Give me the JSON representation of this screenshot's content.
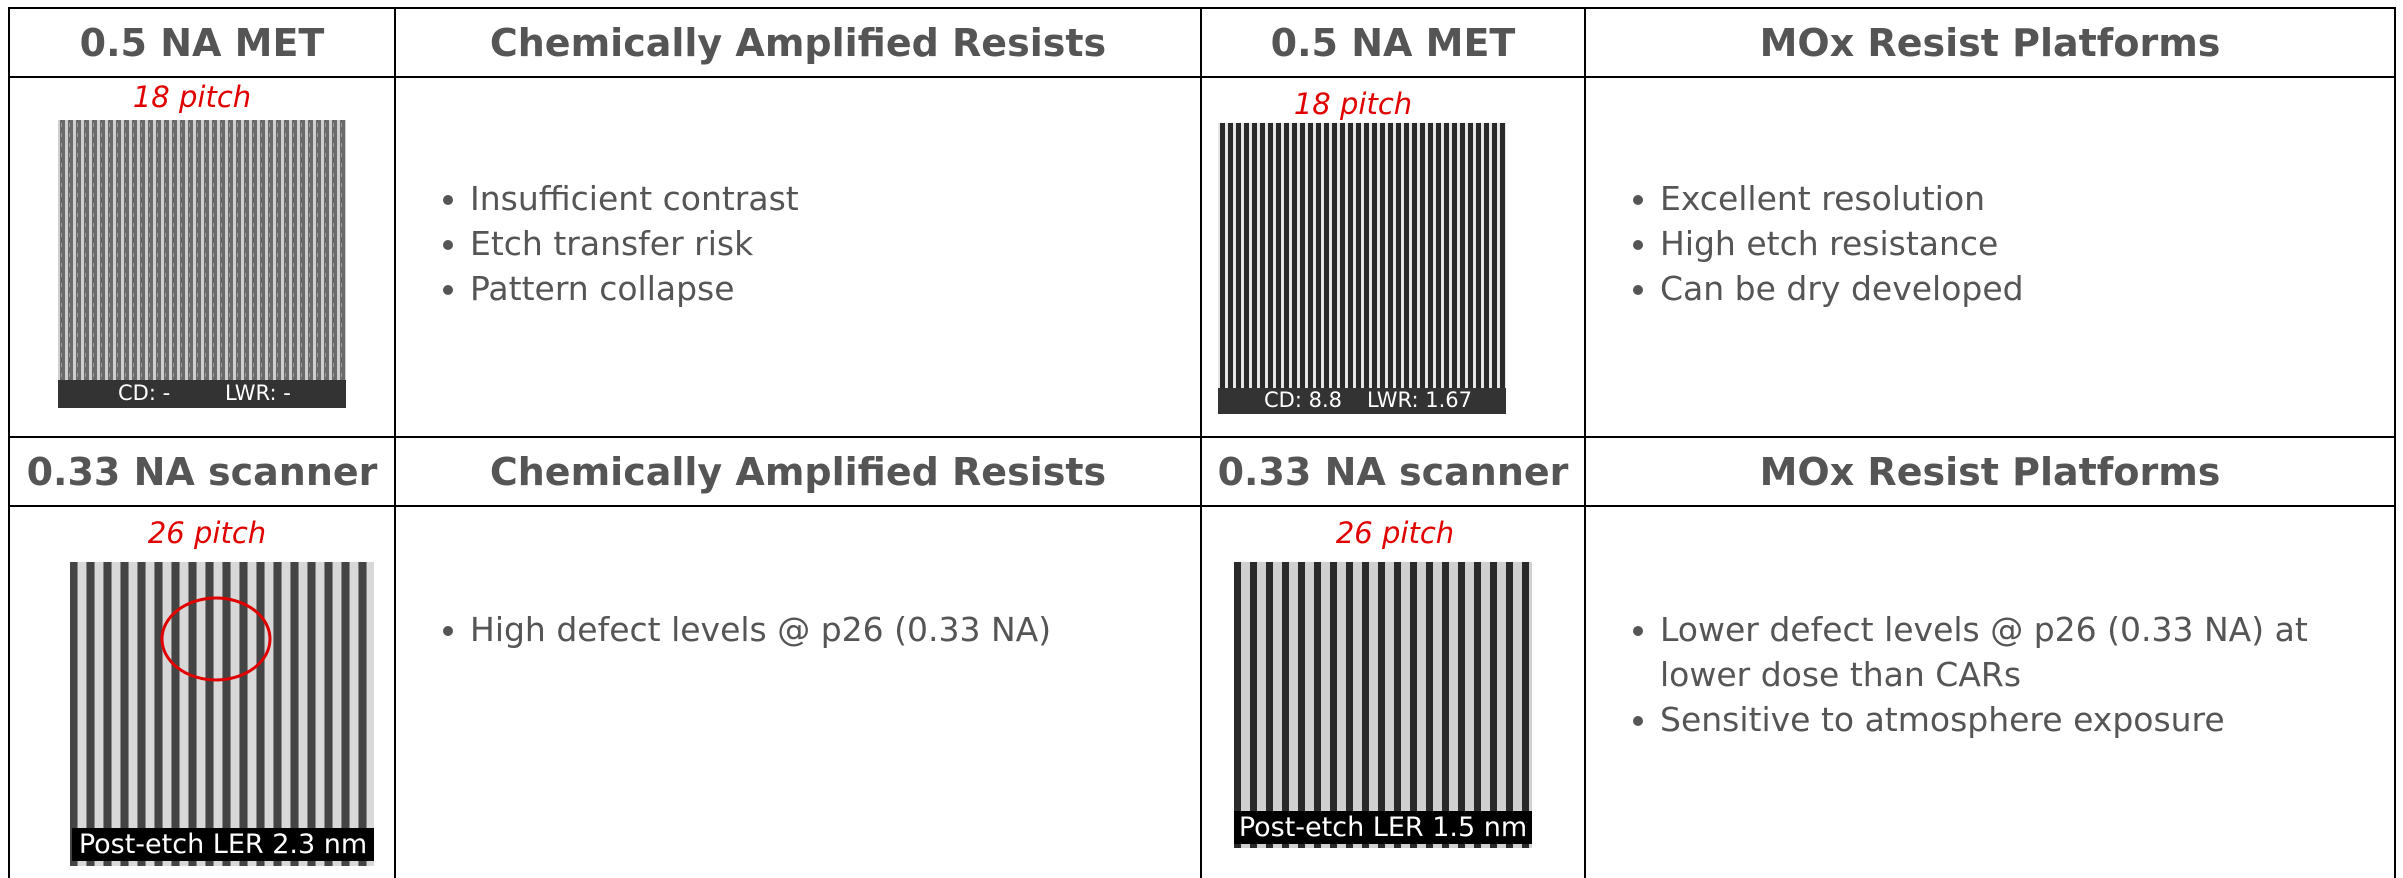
{
  "sections": [
    {
      "headers": [
        "0.5 NA MET",
        "Chemically Amplified Resists",
        "0.5 NA MET",
        "MOx Resist Platforms"
      ],
      "left_image": {
        "pitch": "18 pitch",
        "cd": "CD: -",
        "lwr": "LWR: -"
      },
      "left_bullets": [
        "Insufficient contrast",
        "Etch transfer risk",
        "Pattern collapse"
      ],
      "right_image": {
        "pitch": "18 pitch",
        "cd": "CD: 8.8",
        "lwr": "LWR: 1.67"
      },
      "right_bullets": [
        "Excellent resolution",
        "High etch resistance",
        "Can be dry developed"
      ]
    },
    {
      "headers": [
        "0.33 NA scanner",
        "Chemically Amplified Resists",
        "0.33 NA scanner",
        "MOx Resist Platforms"
      ],
      "left_image": {
        "pitch": "26 pitch",
        "caption": "Post-etch LER 2.3 nm"
      },
      "left_bullets": [
        "High defect levels @ p26 (0.33 NA)"
      ],
      "right_image": {
        "pitch": "26 pitch",
        "caption": "Post-etch LER 1.5 nm"
      },
      "right_bullets": [
        "Lower defect levels @ p26 (0.33 NA) at lower dose than CARs",
        "Sensitive to atmosphere exposure"
      ]
    }
  ]
}
